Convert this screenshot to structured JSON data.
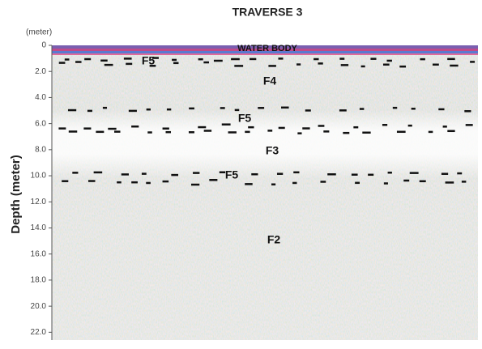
{
  "chart_data": {
    "type": "radargram",
    "title": "TRAVERSE 3",
    "y_unit": "(meter)",
    "ylabel": "Depth (meter)",
    "ylim": [
      0,
      22.6
    ],
    "yticks": [
      0,
      {
        "value": 2,
        "label": "2.0"
      },
      {
        "value": 4,
        "label": "4.0"
      },
      {
        "value": 6,
        "label": "6.0"
      },
      {
        "value": 8,
        "label": "8.0"
      },
      {
        "value": 10,
        "label": "10.0"
      },
      {
        "value": 12,
        "label": "12.0"
      },
      {
        "value": 14,
        "label": "14.0"
      },
      {
        "value": 16,
        "label": "16.0"
      },
      {
        "value": 18,
        "label": "18.0"
      },
      {
        "value": 20,
        "label": "20.0"
      },
      {
        "value": 22,
        "label": "22.0"
      }
    ],
    "annotations": [
      "WATER BODY",
      "F5",
      "F4",
      "F5",
      "F3",
      "F5",
      "F2"
    ]
  }
}
